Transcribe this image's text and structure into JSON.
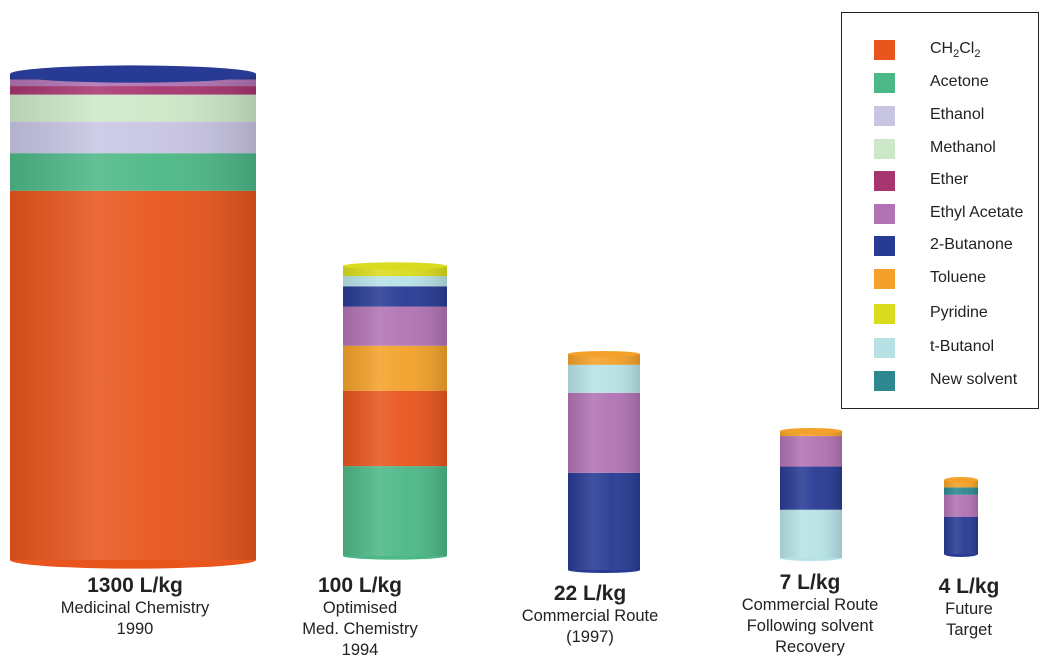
{
  "chart_data": {
    "type": "bar",
    "stacked": true,
    "unit": "L/kg",
    "legend_position": "top-right",
    "series": [
      {
        "name": "CH2Cl2",
        "color": "#e8561e"
      },
      {
        "name": "Acetone",
        "color": "#4db887"
      },
      {
        "name": "Ethanol",
        "color": "#c8c5e3"
      },
      {
        "name": "Methanol",
        "color": "#cde8c8"
      },
      {
        "name": "Ether",
        "color": "#a73670"
      },
      {
        "name": "Ethyl Acetate",
        "color": "#b173b3"
      },
      {
        "name": "2-Butanone",
        "color": "#283b94"
      },
      {
        "name": "Toluene",
        "color": "#f3a12a"
      },
      {
        "name": "Pyridine",
        "color": "#d9dc1e"
      },
      {
        "name": "t-Butanol",
        "color": "#b6e2e6"
      },
      {
        "name": "New solvent",
        "color": "#2e8890"
      }
    ],
    "bars": [
      {
        "total": 1300,
        "value_label": "1300 L/kg",
        "caption": [
          "Medicinal Chemistry",
          "1990"
        ],
        "segments": [
          {
            "solvent": "CH2Cl2",
            "fraction": 0.737
          },
          {
            "solvent": "Acetone",
            "fraction": 0.075
          },
          {
            "solvent": "Ethanol",
            "fraction": 0.063
          },
          {
            "solvent": "Methanol",
            "fraction": 0.054
          },
          {
            "solvent": "Ether",
            "fraction": 0.017
          },
          {
            "solvent": "Ethyl Acetate",
            "fraction": 0.013
          },
          {
            "solvent": "2-Butanone",
            "fraction": 0.011
          }
        ]
      },
      {
        "total": 100,
        "value_label": "100 L/kg",
        "caption": [
          "Optimised",
          "Med. Chemistry",
          "1994"
        ],
        "segments": [
          {
            "solvent": "Acetone",
            "fraction": 0.31
          },
          {
            "solvent": "CH2Cl2",
            "fraction": 0.26
          },
          {
            "solvent": "Toluene",
            "fraction": 0.155
          },
          {
            "solvent": "Ethyl Acetate",
            "fraction": 0.135
          },
          {
            "solvent": "2-Butanone",
            "fraction": 0.07
          },
          {
            "solvent": "t-Butanol",
            "fraction": 0.035
          },
          {
            "solvent": "Pyridine",
            "fraction": 0.035
          }
        ]
      },
      {
        "total": 22,
        "value_label": "22 L/kg",
        "caption": [
          "Commercial Route",
          "(1997)"
        ],
        "segments": [
          {
            "solvent": "2-Butanone",
            "fraction": 0.45
          },
          {
            "solvent": "Ethyl Acetate",
            "fraction": 0.37
          },
          {
            "solvent": "t-Butanol",
            "fraction": 0.13
          },
          {
            "solvent": "Toluene",
            "fraction": 0.05
          }
        ]
      },
      {
        "total": 7,
        "value_label": "7 L/kg",
        "caption": [
          "Commercial Route",
          "Following solvent",
          "Recovery"
        ],
        "segments": [
          {
            "solvent": "t-Butanol",
            "fraction": 0.38
          },
          {
            "solvent": "2-Butanone",
            "fraction": 0.34
          },
          {
            "solvent": "Ethyl Acetate",
            "fraction": 0.24
          },
          {
            "solvent": "Toluene",
            "fraction": 0.04
          }
        ]
      },
      {
        "total": 4,
        "value_label": "4 L/kg",
        "caption": [
          "Future",
          "Target"
        ],
        "segments": [
          {
            "solvent": "2-Butanone",
            "fraction": 0.5
          },
          {
            "solvent": "Ethyl Acetate",
            "fraction": 0.3
          },
          {
            "solvent": "New solvent",
            "fraction": 0.1
          },
          {
            "solvent": "Toluene",
            "fraction": 0.1
          }
        ]
      }
    ]
  },
  "legend": {
    "items": [
      {
        "base": "CH",
        "sub1": "2",
        "mid": "Cl",
        "sub2": "2",
        "color": "#e8561e"
      },
      {
        "base": "Acetone",
        "color": "#4db887"
      },
      {
        "base": "Ethanol",
        "color": "#c8c5e3"
      },
      {
        "base": "Methanol",
        "color": "#cde8c8"
      },
      {
        "base": "Ether",
        "color": "#a73670"
      },
      {
        "base": "Ethyl Acetate",
        "color": "#b173b3"
      },
      {
        "base": "2-Butanone",
        "color": "#283b94"
      },
      {
        "base": "Toluene",
        "color": "#f3a12a"
      },
      {
        "base": "Pyridine",
        "color": "#d9dc1e"
      },
      {
        "base": "t-Butanol",
        "color": "#b6e2e6"
      },
      {
        "base": "New solvent",
        "color": "#2e8890"
      }
    ]
  }
}
